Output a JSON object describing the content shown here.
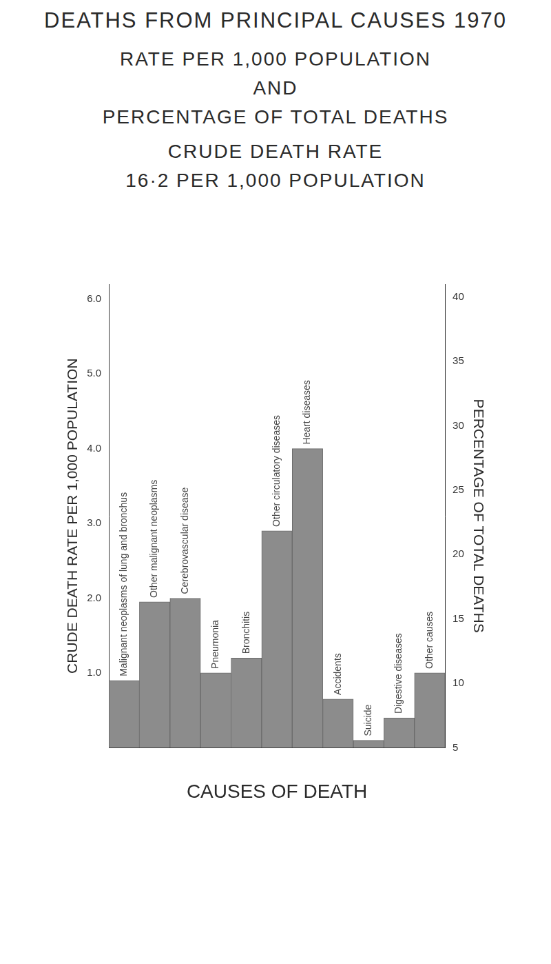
{
  "chart_data": {
    "type": "bar",
    "title": "DEATHS FROM PRINCIPAL CAUSES 1970",
    "subtitle": [
      "RATE PER 1,000 POPULATION",
      "AND",
      "PERCENTAGE OF TOTAL DEATHS"
    ],
    "annotations": [
      "CRUDE DEATH RATE",
      "16·2 PER 1,000 POPULATION"
    ],
    "x_label": "CAUSES OF DEATH",
    "y_label": "CRUDE DEATH RATE PER 1,000 POPULATION",
    "y2_label": "PERCENTAGE OF TOTAL DEATHS",
    "categories": [
      "Malignant neoplasms of lung and bronchus",
      "Other malignant neoplasms",
      "Cerebrovascular disease",
      "Pneumonia",
      "Bronchitis",
      "Other circulatory diseases",
      "Heart diseases",
      "Accidents",
      "Suicide",
      "Digestive diseases",
      "Other causes"
    ],
    "values": [
      0.9,
      1.95,
      2.0,
      1.0,
      1.2,
      2.9,
      4.0,
      0.65,
      0.1,
      0.4,
      1.0
    ],
    "color": "#8c8c8c",
    "ylim": [
      0,
      6.2
    ],
    "yticks": [
      {
        "value": 1,
        "label": "1.0"
      },
      {
        "value": 2,
        "label": "2.0"
      },
      {
        "value": 3,
        "label": "3.0"
      },
      {
        "value": 4,
        "label": "4.0"
      },
      {
        "value": 5,
        "label": "5.0"
      },
      {
        "value": 6,
        "label": "6.0"
      }
    ],
    "y2lim": [
      5,
      41
    ],
    "y2ticks": [
      5,
      10,
      15,
      20,
      25,
      30,
      35,
      40
    ],
    "grid": false,
    "tick_labels": "y"
  }
}
